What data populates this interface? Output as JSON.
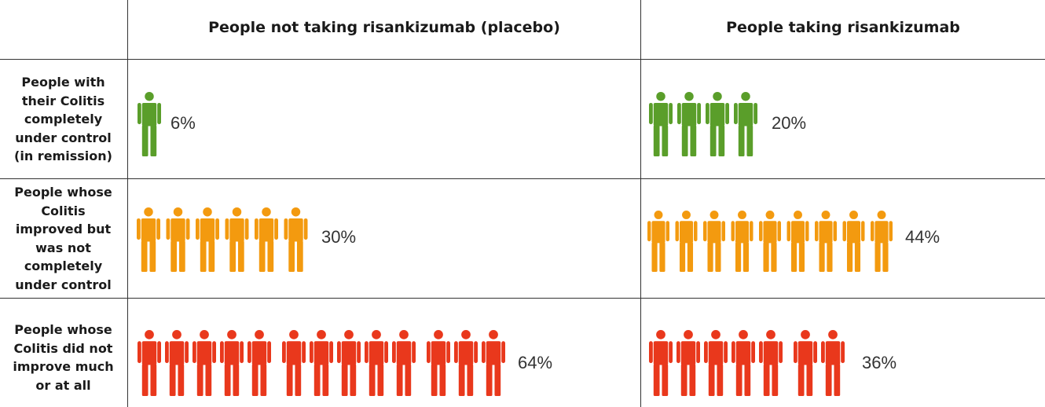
{
  "chart_data": {
    "type": "table",
    "columns": [
      "People not taking risankizumab (placebo)",
      "People taking risankizumab"
    ],
    "rows": [
      {
        "label": "People with their Colitis completely under control (in remission)",
        "label_lines": [
          "People with",
          "their Colitis",
          "completely",
          "under control",
          "(in remission)"
        ],
        "color": "#5a9e2a",
        "values": [
          "6%",
          "20%"
        ],
        "icon_counts": [
          1,
          4
        ]
      },
      {
        "label": "People whose Colitis improved but was not completely under control",
        "label_lines": [
          "People whose",
          "Colitis",
          "improved but",
          "was not",
          "completely",
          "under control"
        ],
        "color": "#f39a0f",
        "values": [
          "30%",
          "44%"
        ],
        "icon_counts": [
          6,
          9
        ]
      },
      {
        "label": "People whose Colitis did not improve much or at all",
        "label_lines": [
          "People whose",
          "Colitis did not",
          "improve much",
          "or at all"
        ],
        "color": "#e9381c",
        "values": [
          "64%",
          "36%"
        ],
        "icon_counts": [
          13,
          7
        ]
      }
    ],
    "icon": "person-icon"
  }
}
